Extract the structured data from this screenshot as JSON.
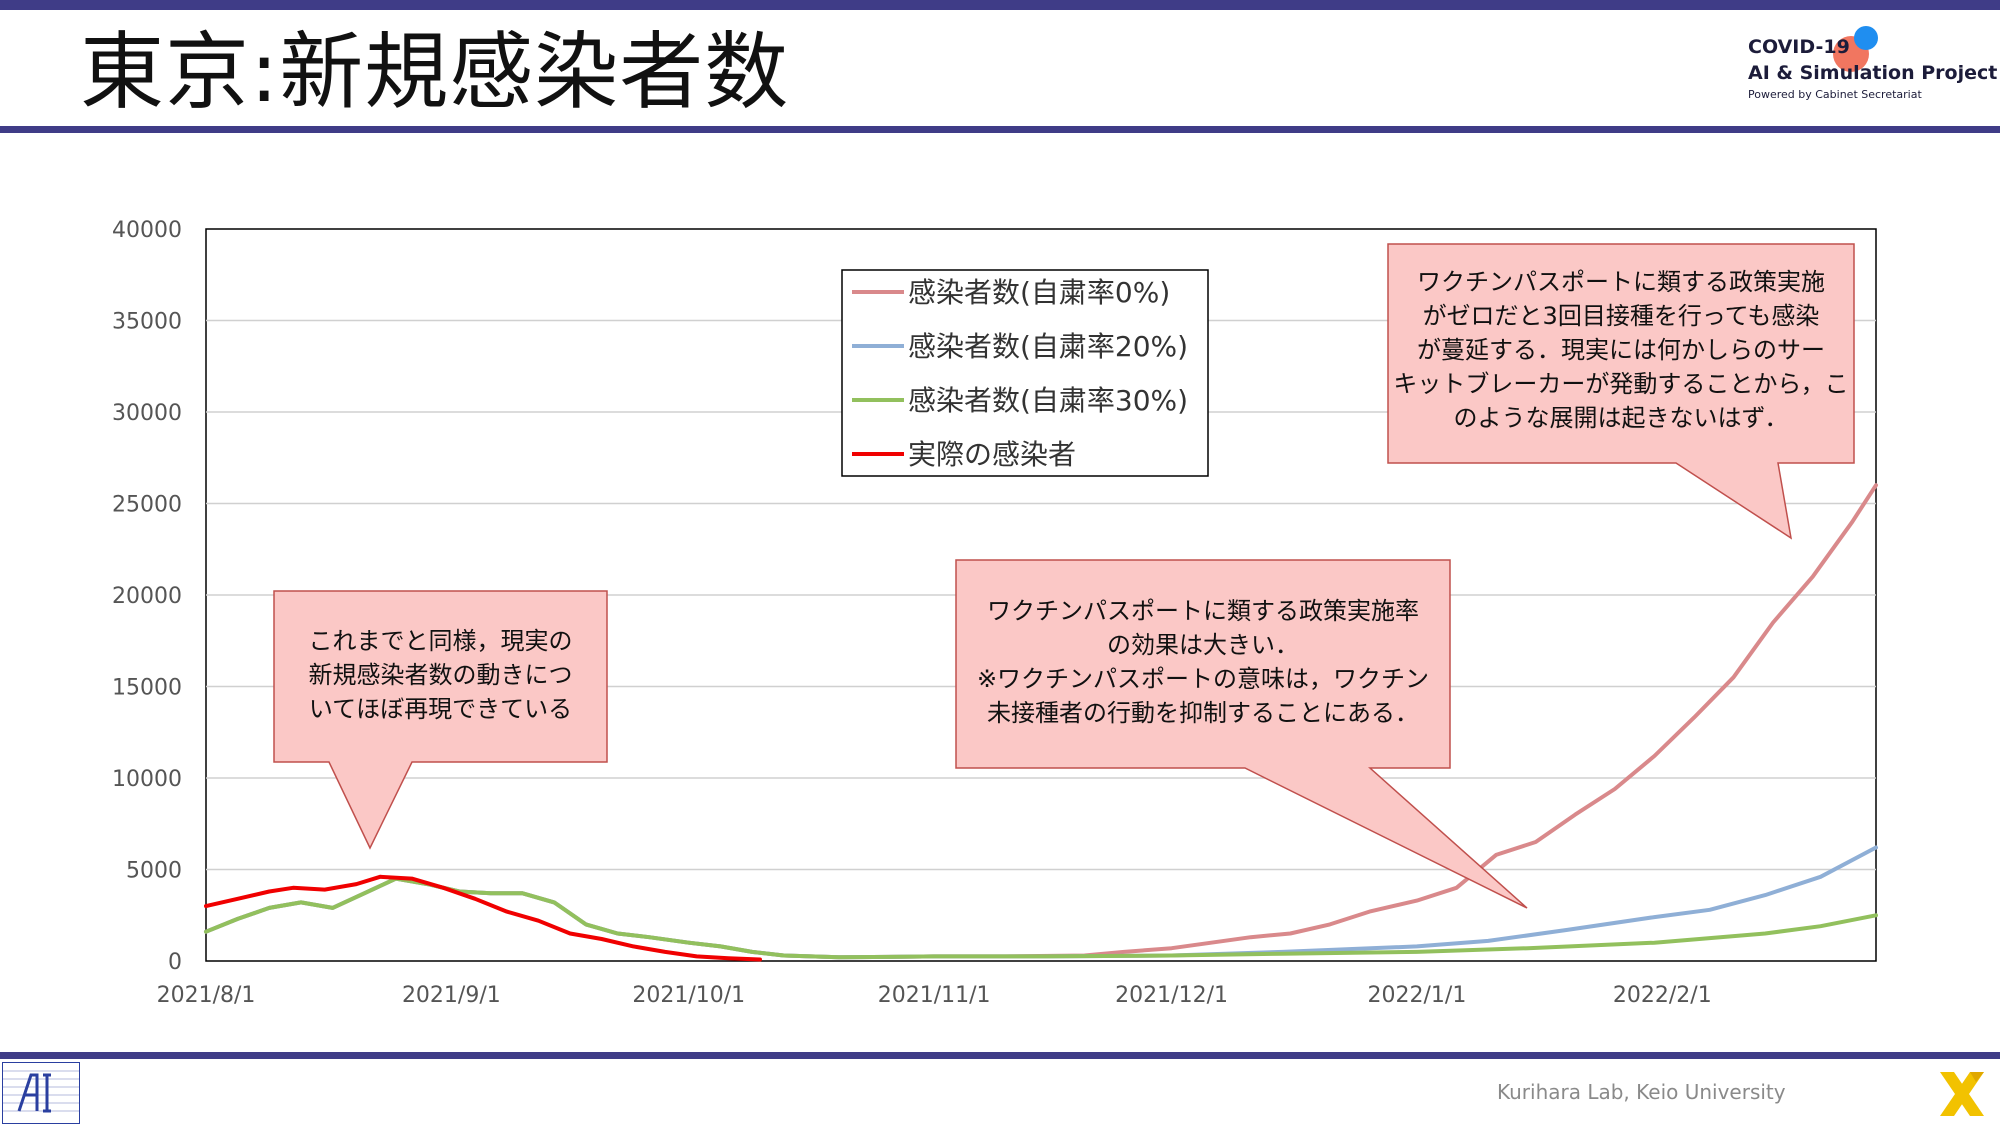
{
  "header": {
    "title": "東京:新規感染者数",
    "logo_line1": "COVID-19",
    "logo_line2": "AI & Simulation Project",
    "logo_line3": "Powered by Cabinet Secretariat"
  },
  "footer": {
    "credit": "Kurihara Lab, Keio University"
  },
  "colors": {
    "accent_bar": "#3f3c87",
    "series_0pct": "#d9898b",
    "series_20pct": "#8fafd6",
    "series_30pct": "#92c05d",
    "series_actual": "#f00000",
    "callout_fill": "#fbc8c6",
    "callout_stroke": "#c0504d"
  },
  "callouts": [
    {
      "lines": [
        "これまでと同様，現実の",
        "新規感染者数の動きにつ",
        "いてほぼ再現できている"
      ]
    },
    {
      "lines": [
        "ワクチンパスポートに類する政策実施率",
        "の効果は大きい．",
        "※ワクチンパスポートの意味は，ワクチン",
        "未接種者の行動を抑制することにある．"
      ]
    },
    {
      "lines": [
        "ワクチンパスポートに類する政策実施",
        "がゼロだと3回目接種を行っても感染",
        "が蔓延する．現実には何かしらのサー",
        "キットブレーカーが発動することから，こ",
        "のような展開は起きないはず．"
      ]
    }
  ],
  "chart_data": {
    "type": "line",
    "title": "",
    "xlabel": "",
    "ylabel": "",
    "ylim": [
      0,
      40000
    ],
    "yticks": [
      0,
      5000,
      10000,
      15000,
      20000,
      25000,
      30000,
      35000,
      40000
    ],
    "xlim": [
      "2021-08-01",
      "2022-02-28"
    ],
    "xticks": [
      "2021/8/1",
      "2021/9/1",
      "2021/10/1",
      "2021/11/1",
      "2021/12/1",
      "2022/1/1",
      "2022/2/1"
    ],
    "xtick_dates": [
      "2021-08-01",
      "2021-09-01",
      "2021-10-01",
      "2021-11-01",
      "2021-12-01",
      "2022-01-01",
      "2022-02-01"
    ],
    "grid": true,
    "legend_position": "top-center",
    "series": [
      {
        "name": "感染者数(自粛率0%)",
        "color": "#d9898b",
        "points": [
          [
            "2021-08-01",
            1600
          ],
          [
            "2021-08-05",
            2300
          ],
          [
            "2021-08-09",
            2900
          ],
          [
            "2021-08-13",
            3200
          ],
          [
            "2021-08-17",
            2900
          ],
          [
            "2021-08-21",
            3700
          ],
          [
            "2021-08-25",
            4500
          ],
          [
            "2021-08-29",
            4200
          ],
          [
            "2021-09-02",
            3800
          ],
          [
            "2021-09-06",
            3700
          ],
          [
            "2021-09-10",
            3700
          ],
          [
            "2021-09-14",
            3200
          ],
          [
            "2021-09-18",
            2000
          ],
          [
            "2021-09-22",
            1500
          ],
          [
            "2021-09-26",
            1300
          ],
          [
            "2021-10-01",
            1000
          ],
          [
            "2021-10-05",
            800
          ],
          [
            "2021-10-09",
            500
          ],
          [
            "2021-10-13",
            300
          ],
          [
            "2021-10-20",
            200
          ],
          [
            "2021-11-01",
            250
          ],
          [
            "2021-11-10",
            250
          ],
          [
            "2021-11-20",
            300
          ],
          [
            "2021-11-25",
            500
          ],
          [
            "2021-12-01",
            700
          ],
          [
            "2021-12-06",
            1000
          ],
          [
            "2021-12-11",
            1300
          ],
          [
            "2021-12-16",
            1500
          ],
          [
            "2021-12-21",
            2000
          ],
          [
            "2021-12-26",
            2700
          ],
          [
            "2022-01-01",
            3300
          ],
          [
            "2022-01-06",
            4000
          ],
          [
            "2022-01-11",
            5800
          ],
          [
            "2022-01-16",
            6500
          ],
          [
            "2022-01-21",
            8000
          ],
          [
            "2022-01-26",
            9400
          ],
          [
            "2022-01-31",
            11200
          ],
          [
            "2022-02-05",
            13300
          ],
          [
            "2022-02-10",
            15500
          ],
          [
            "2022-02-15",
            18500
          ],
          [
            "2022-02-20",
            21000
          ],
          [
            "2022-02-25",
            24000
          ],
          [
            "2022-02-28",
            26000
          ]
        ]
      },
      {
        "name": "感染者数(自粛率20%)",
        "color": "#8fafd6",
        "points": [
          [
            "2021-08-01",
            1600
          ],
          [
            "2021-08-05",
            2300
          ],
          [
            "2021-08-09",
            2900
          ],
          [
            "2021-08-13",
            3200
          ],
          [
            "2021-08-17",
            2900
          ],
          [
            "2021-08-21",
            3700
          ],
          [
            "2021-08-25",
            4500
          ],
          [
            "2021-08-29",
            4200
          ],
          [
            "2021-09-02",
            3800
          ],
          [
            "2021-09-06",
            3700
          ],
          [
            "2021-09-10",
            3700
          ],
          [
            "2021-09-14",
            3200
          ],
          [
            "2021-09-18",
            2000
          ],
          [
            "2021-09-22",
            1500
          ],
          [
            "2021-09-26",
            1300
          ],
          [
            "2021-10-01",
            1000
          ],
          [
            "2021-10-05",
            800
          ],
          [
            "2021-10-09",
            500
          ],
          [
            "2021-10-13",
            300
          ],
          [
            "2021-10-20",
            200
          ],
          [
            "2021-11-01",
            250
          ],
          [
            "2021-11-15",
            250
          ],
          [
            "2021-12-01",
            300
          ],
          [
            "2021-12-15",
            500
          ],
          [
            "2022-01-01",
            800
          ],
          [
            "2022-01-10",
            1100
          ],
          [
            "2022-01-20",
            1700
          ],
          [
            "2022-01-31",
            2400
          ],
          [
            "2022-02-07",
            2800
          ],
          [
            "2022-02-14",
            3600
          ],
          [
            "2022-02-21",
            4600
          ],
          [
            "2022-02-28",
            6200
          ]
        ]
      },
      {
        "name": "感染者数(自粛率30%)",
        "color": "#92c05d",
        "points": [
          [
            "2021-08-01",
            1600
          ],
          [
            "2021-08-05",
            2300
          ],
          [
            "2021-08-09",
            2900
          ],
          [
            "2021-08-13",
            3200
          ],
          [
            "2021-08-17",
            2900
          ],
          [
            "2021-08-21",
            3700
          ],
          [
            "2021-08-25",
            4500
          ],
          [
            "2021-08-29",
            4200
          ],
          [
            "2021-09-02",
            3800
          ],
          [
            "2021-09-06",
            3700
          ],
          [
            "2021-09-10",
            3700
          ],
          [
            "2021-09-14",
            3200
          ],
          [
            "2021-09-18",
            2000
          ],
          [
            "2021-09-22",
            1500
          ],
          [
            "2021-09-26",
            1300
          ],
          [
            "2021-10-01",
            1000
          ],
          [
            "2021-10-05",
            800
          ],
          [
            "2021-10-09",
            500
          ],
          [
            "2021-10-13",
            300
          ],
          [
            "2021-10-20",
            200
          ],
          [
            "2021-11-01",
            250
          ],
          [
            "2021-11-15",
            250
          ],
          [
            "2021-12-01",
            300
          ],
          [
            "2021-12-15",
            400
          ],
          [
            "2022-01-01",
            500
          ],
          [
            "2022-01-15",
            700
          ],
          [
            "2022-01-31",
            1000
          ],
          [
            "2022-02-14",
            1500
          ],
          [
            "2022-02-21",
            1900
          ],
          [
            "2022-02-28",
            2500
          ]
        ]
      },
      {
        "name": "実際の感染者",
        "color": "#f00000",
        "points": [
          [
            "2021-08-01",
            3000
          ],
          [
            "2021-08-05",
            3400
          ],
          [
            "2021-08-09",
            3800
          ],
          [
            "2021-08-12",
            4000
          ],
          [
            "2021-08-16",
            3900
          ],
          [
            "2021-08-20",
            4200
          ],
          [
            "2021-08-23",
            4600
          ],
          [
            "2021-08-27",
            4500
          ],
          [
            "2021-08-31",
            4000
          ],
          [
            "2021-09-04",
            3400
          ],
          [
            "2021-09-08",
            2700
          ],
          [
            "2021-09-12",
            2200
          ],
          [
            "2021-09-16",
            1500
          ],
          [
            "2021-09-20",
            1200
          ],
          [
            "2021-09-24",
            800
          ],
          [
            "2021-09-28",
            500
          ],
          [
            "2021-10-02",
            250
          ],
          [
            "2021-10-06",
            150
          ],
          [
            "2021-10-10",
            80
          ]
        ]
      }
    ]
  }
}
